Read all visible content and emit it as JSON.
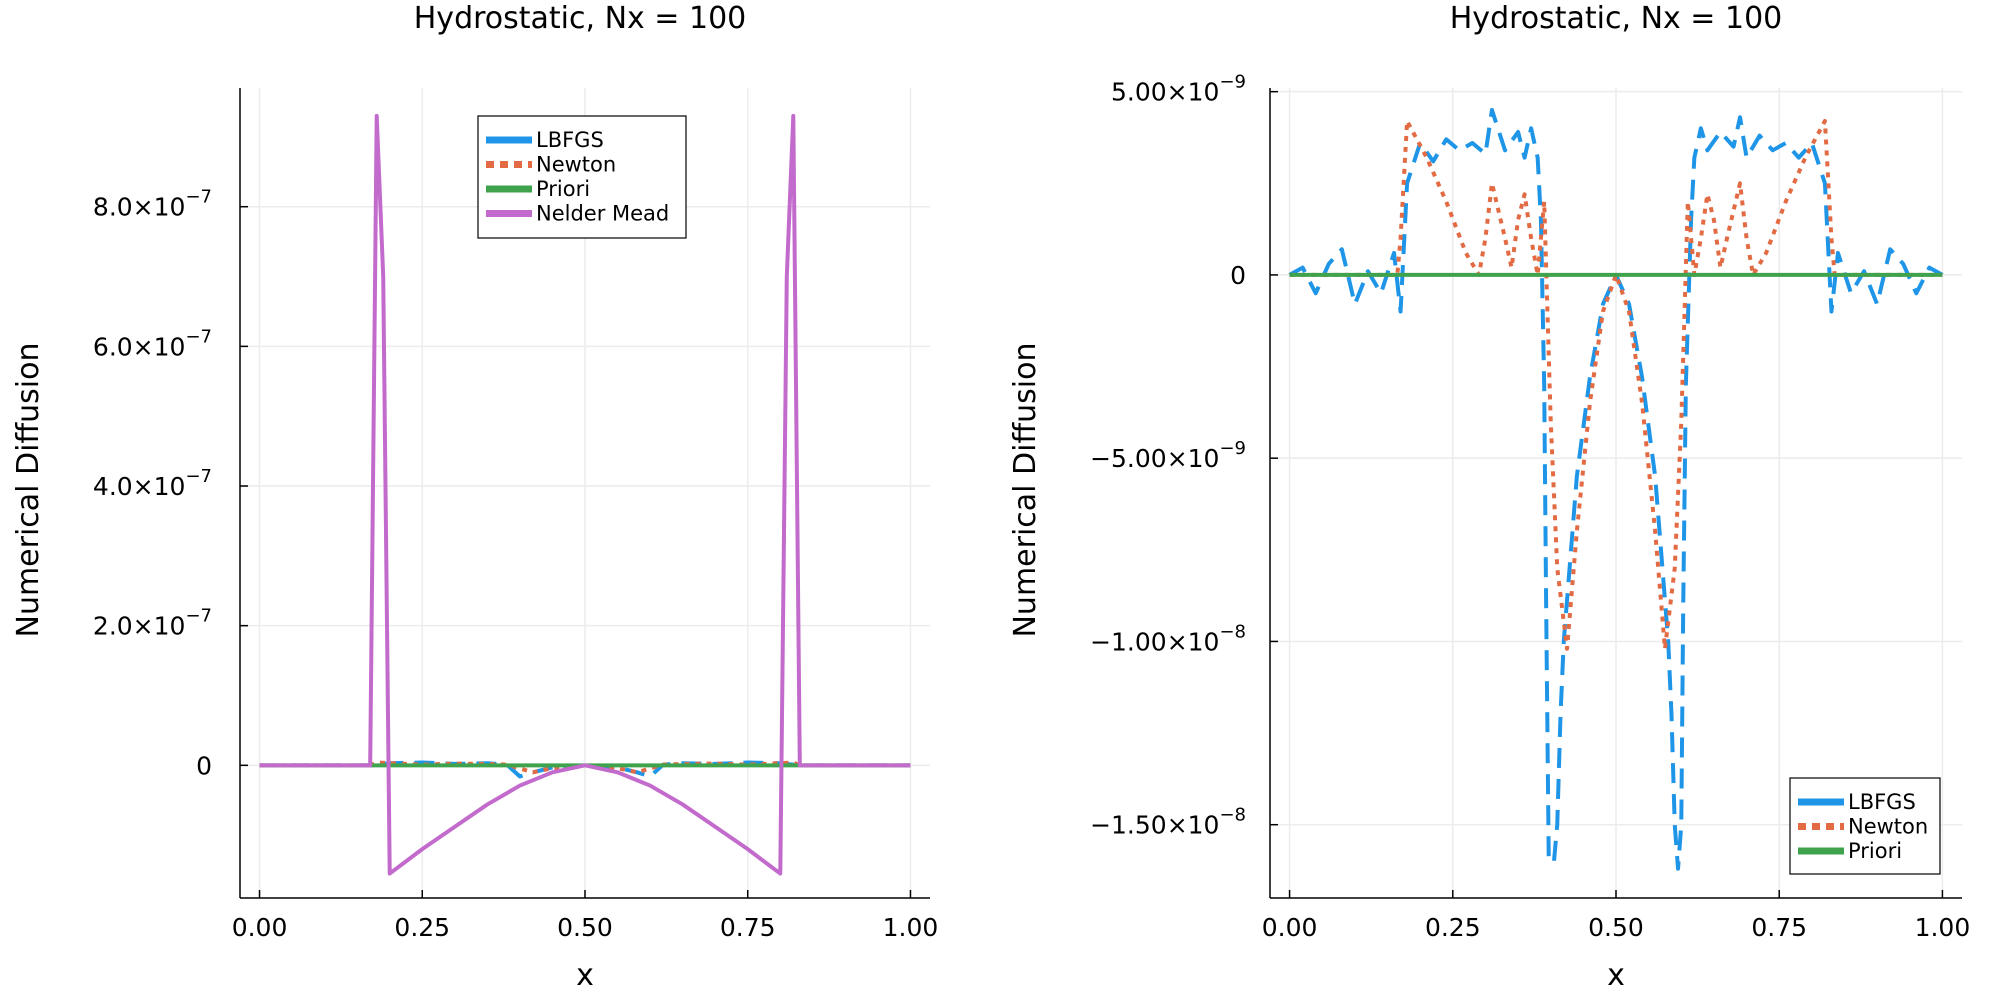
{
  "colors": {
    "lbfgs": "#1f95e8",
    "newton": "#e26b43",
    "priori": "#3fa34d",
    "nelder": "#c26bcc",
    "grid": "#ececec",
    "axis": "#000000"
  },
  "chart_data": [
    {
      "type": "line",
      "title": "Hydrostatic, Nx = 100",
      "xlabel": "x",
      "ylabel": "Numerical Diffusion",
      "xlim": [
        -0.03,
        1.03
      ],
      "ylim": [
        -1.9e-07,
        9.7e-07
      ],
      "grid": true,
      "legend_position": "top-center",
      "x_ticks": [
        {
          "v": 0.0,
          "label": "0.00"
        },
        {
          "v": 0.25,
          "label": "0.25"
        },
        {
          "v": 0.5,
          "label": "0.50"
        },
        {
          "v": 0.75,
          "label": "0.75"
        },
        {
          "v": 1.0,
          "label": "1.00"
        }
      ],
      "y_ticks": [
        {
          "v": 0,
          "mant": "0",
          "exp": ""
        },
        {
          "v": 2e-07,
          "mant": "2.0×10",
          "exp": "−7"
        },
        {
          "v": 4e-07,
          "mant": "4.0×10",
          "exp": "−7"
        },
        {
          "v": 6e-07,
          "mant": "6.0×10",
          "exp": "−7"
        },
        {
          "v": 8e-07,
          "mant": "8.0×10",
          "exp": "−7"
        }
      ],
      "series": [
        {
          "name": "LBFGS",
          "style": "dashed",
          "color_key": "lbfgs",
          "points": [
            [
              0.0,
              0
            ],
            [
              0.17,
              0
            ],
            [
              0.2,
              3e-09
            ],
            [
              0.25,
              4e-09
            ],
            [
              0.3,
              2e-09
            ],
            [
              0.35,
              3e-09
            ],
            [
              0.38,
              1e-09
            ],
            [
              0.4,
              -1.6e-08
            ],
            [
              0.42,
              -1e-08
            ],
            [
              0.45,
              -3e-09
            ],
            [
              0.5,
              0
            ],
            [
              0.55,
              -3e-09
            ],
            [
              0.58,
              -1e-08
            ],
            [
              0.6,
              -1.6e-08
            ],
            [
              0.62,
              1e-09
            ],
            [
              0.65,
              3e-09
            ],
            [
              0.7,
              2e-09
            ],
            [
              0.75,
              4e-09
            ],
            [
              0.8,
              3e-09
            ],
            [
              0.83,
              0
            ],
            [
              1.0,
              0
            ]
          ]
        },
        {
          "name": "Newton",
          "style": "dotted",
          "color_key": "newton",
          "points": [
            [
              0.0,
              0
            ],
            [
              0.17,
              0
            ],
            [
              0.18,
              4e-09
            ],
            [
              0.25,
              1e-09
            ],
            [
              0.3,
              2.5e-09
            ],
            [
              0.35,
              2e-09
            ],
            [
              0.38,
              1e-09
            ],
            [
              0.42,
              -1e-08
            ],
            [
              0.45,
              -4e-09
            ],
            [
              0.5,
              0
            ],
            [
              0.55,
              -4e-09
            ],
            [
              0.58,
              -1e-08
            ],
            [
              0.62,
              1e-09
            ],
            [
              0.65,
              2e-09
            ],
            [
              0.7,
              2.5e-09
            ],
            [
              0.75,
              1e-09
            ],
            [
              0.82,
              4e-09
            ],
            [
              0.83,
              0
            ],
            [
              1.0,
              0
            ]
          ]
        },
        {
          "name": "Priori",
          "style": "solid",
          "color_key": "priori",
          "points": [
            [
              0.0,
              0
            ],
            [
              1.0,
              0
            ]
          ]
        },
        {
          "name": "Nelder Mead",
          "style": "solid",
          "color_key": "nelder",
          "points": [
            [
              0.0,
              0
            ],
            [
              0.17,
              0
            ],
            [
              0.18,
              9.3e-07
            ],
            [
              0.19,
              7e-07
            ],
            [
              0.2,
              -1.55e-07
            ],
            [
              0.25,
              -1.2e-07
            ],
            [
              0.3,
              -8.8e-08
            ],
            [
              0.35,
              -5.6e-08
            ],
            [
              0.4,
              -2.9e-08
            ],
            [
              0.45,
              -1e-08
            ],
            [
              0.5,
              0
            ],
            [
              0.55,
              -1e-08
            ],
            [
              0.6,
              -2.9e-08
            ],
            [
              0.65,
              -5.6e-08
            ],
            [
              0.7,
              -8.8e-08
            ],
            [
              0.75,
              -1.2e-07
            ],
            [
              0.8,
              -1.55e-07
            ],
            [
              0.81,
              7e-07
            ],
            [
              0.82,
              9.3e-07
            ],
            [
              0.83,
              0
            ],
            [
              1.0,
              0
            ]
          ]
        }
      ]
    },
    {
      "type": "line",
      "title": "Hydrostatic, Nx = 100",
      "xlabel": "x",
      "ylabel": "Numerical Diffusion",
      "xlim": [
        -0.03,
        1.03
      ],
      "ylim": [
        -1.7e-08,
        5.1e-09
      ],
      "grid": true,
      "legend_position": "bottom-right",
      "x_ticks": [
        {
          "v": 0.0,
          "label": "0.00"
        },
        {
          "v": 0.25,
          "label": "0.25"
        },
        {
          "v": 0.5,
          "label": "0.50"
        },
        {
          "v": 0.75,
          "label": "0.75"
        },
        {
          "v": 1.0,
          "label": "1.00"
        }
      ],
      "y_ticks": [
        {
          "v": 5e-09,
          "mant": "5.00×10",
          "exp": "−9"
        },
        {
          "v": 0,
          "mant": "0",
          "exp": ""
        },
        {
          "v": -5e-09,
          "mant": "−5.00×10",
          "exp": "−9"
        },
        {
          "v": -1e-08,
          "mant": "−1.00×10",
          "exp": "−8"
        },
        {
          "v": -1.5e-08,
          "mant": "−1.50×10",
          "exp": "−8"
        }
      ],
      "series": [
        {
          "name": "LBFGS",
          "style": "dashed",
          "color_key": "lbfgs",
          "points": [
            [
              0.0,
              0
            ],
            [
              0.02,
              2e-10
            ],
            [
              0.04,
              -5e-10
            ],
            [
              0.06,
              3e-10
            ],
            [
              0.08,
              7e-10
            ],
            [
              0.1,
              -8e-10
            ],
            [
              0.12,
              1e-10
            ],
            [
              0.14,
              -5e-10
            ],
            [
              0.16,
              6e-10
            ],
            [
              0.17,
              -1e-09
            ],
            [
              0.18,
              2.5e-09
            ],
            [
              0.2,
              3.6e-09
            ],
            [
              0.22,
              3.1e-09
            ],
            [
              0.24,
              3.7e-09
            ],
            [
              0.26,
              3.4e-09
            ],
            [
              0.28,
              3.6e-09
            ],
            [
              0.3,
              3.3e-09
            ],
            [
              0.31,
              4.5e-09
            ],
            [
              0.33,
              3.4e-09
            ],
            [
              0.35,
              3.9e-09
            ],
            [
              0.36,
              3.2e-09
            ],
            [
              0.37,
              4e-09
            ],
            [
              0.38,
              3.2e-09
            ],
            [
              0.385,
              1.5e-09
            ],
            [
              0.39,
              -3e-09
            ],
            [
              0.393,
              -9e-09
            ],
            [
              0.397,
              -1.6e-08
            ],
            [
              0.405,
              -1.6e-08
            ],
            [
              0.41,
              -1.5e-08
            ],
            [
              0.415,
              -1.2e-08
            ],
            [
              0.42,
              -1e-08
            ],
            [
              0.44,
              -5.5e-09
            ],
            [
              0.46,
              -2.8e-09
            ],
            [
              0.48,
              -8e-10
            ],
            [
              0.5,
              0
            ],
            [
              0.52,
              -8e-10
            ],
            [
              0.54,
              -2.8e-09
            ],
            [
              0.56,
              -5.5e-09
            ],
            [
              0.58,
              -1e-08
            ],
            [
              0.585,
              -1.2e-08
            ],
            [
              0.59,
              -1.5e-08
            ],
            [
              0.595,
              -1.62e-08
            ],
            [
              0.6,
              -1.5e-08
            ],
            [
              0.603,
              -9e-09
            ],
            [
              0.607,
              -3e-09
            ],
            [
              0.615,
              1.5e-09
            ],
            [
              0.62,
              3.2e-09
            ],
            [
              0.63,
              4e-09
            ],
            [
              0.64,
              3.4e-09
            ],
            [
              0.66,
              3.9e-09
            ],
            [
              0.68,
              3.5e-09
            ],
            [
              0.69,
              4.3e-09
            ],
            [
              0.7,
              3.2e-09
            ],
            [
              0.72,
              3.8e-09
            ],
            [
              0.74,
              3.4e-09
            ],
            [
              0.76,
              3.6e-09
            ],
            [
              0.78,
              3.2e-09
            ],
            [
              0.8,
              3.6e-09
            ],
            [
              0.82,
              2.5e-09
            ],
            [
              0.83,
              -1e-09
            ],
            [
              0.84,
              6e-10
            ],
            [
              0.86,
              -5e-10
            ],
            [
              0.88,
              1e-10
            ],
            [
              0.9,
              -8e-10
            ],
            [
              0.92,
              7e-10
            ],
            [
              0.94,
              3e-10
            ],
            [
              0.96,
              -5e-10
            ],
            [
              0.98,
              2e-10
            ],
            [
              1.0,
              0
            ]
          ]
        },
        {
          "name": "Newton",
          "style": "dotted",
          "color_key": "newton",
          "points": [
            [
              0.0,
              0
            ],
            [
              0.165,
              0
            ],
            [
              0.17,
              1e-09
            ],
            [
              0.18,
              4.2e-09
            ],
            [
              0.21,
              3.2e-09
            ],
            [
              0.24,
              2e-09
            ],
            [
              0.27,
              6e-10
            ],
            [
              0.29,
              0
            ],
            [
              0.3,
              1e-09
            ],
            [
              0.31,
              2.5e-09
            ],
            [
              0.33,
              1e-09
            ],
            [
              0.34,
              2e-10
            ],
            [
              0.35,
              1.5e-09
            ],
            [
              0.36,
              2.2e-09
            ],
            [
              0.37,
              1e-09
            ],
            [
              0.38,
              0
            ],
            [
              0.39,
              2e-09
            ],
            [
              0.4,
              -4e-09
            ],
            [
              0.41,
              -8e-09
            ],
            [
              0.425,
              -1.02e-08
            ],
            [
              0.44,
              -7e-09
            ],
            [
              0.46,
              -3.5e-09
            ],
            [
              0.48,
              -1e-09
            ],
            [
              0.5,
              0
            ],
            [
              0.52,
              -1e-09
            ],
            [
              0.54,
              -3.5e-09
            ],
            [
              0.56,
              -7e-09
            ],
            [
              0.575,
              -1.02e-08
            ],
            [
              0.59,
              -8e-09
            ],
            [
              0.6,
              -4e-09
            ],
            [
              0.61,
              2e-09
            ],
            [
              0.62,
              0
            ],
            [
              0.63,
              1e-09
            ],
            [
              0.64,
              2.2e-09
            ],
            [
              0.65,
              1.5e-09
            ],
            [
              0.66,
              2e-10
            ],
            [
              0.67,
              1e-09
            ],
            [
              0.69,
              2.5e-09
            ],
            [
              0.7,
              1e-09
            ],
            [
              0.71,
              0
            ],
            [
              0.73,
              6e-10
            ],
            [
              0.76,
              2e-09
            ],
            [
              0.79,
              3.2e-09
            ],
            [
              0.82,
              4.2e-09
            ],
            [
              0.83,
              1e-09
            ],
            [
              0.835,
              0
            ],
            [
              1.0,
              0
            ]
          ]
        },
        {
          "name": "Priori",
          "style": "solid",
          "color_key": "priori",
          "points": [
            [
              0.0,
              0
            ],
            [
              1.0,
              0
            ]
          ]
        }
      ]
    }
  ]
}
